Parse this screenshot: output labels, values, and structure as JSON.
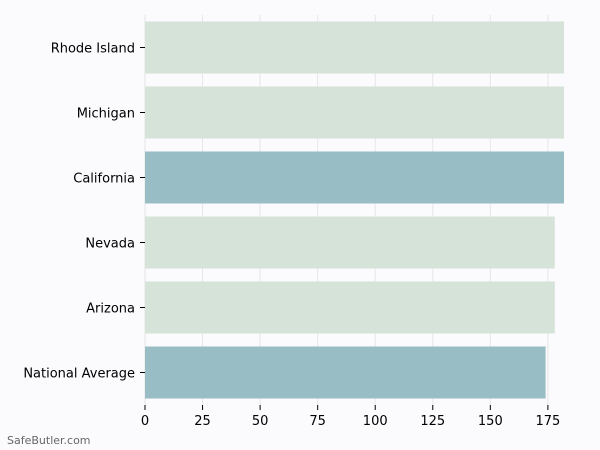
{
  "chart_data": {
    "type": "bar",
    "orientation": "horizontal",
    "categories": [
      "Rhode Island",
      "Michigan",
      "California",
      "Nevada",
      "Arizona",
      "National Average"
    ],
    "values": [
      182,
      182,
      182,
      178,
      178,
      174
    ],
    "highlight": [
      false,
      false,
      true,
      false,
      false,
      true
    ],
    "xlim": [
      0,
      182
    ],
    "xticks": [
      0,
      25,
      50,
      75,
      100,
      125,
      150,
      175
    ],
    "grid": "vertical",
    "title": "",
    "xlabel": "",
    "ylabel": "",
    "colors": {
      "bar": "#d5e3d8",
      "highlight": "#98bdc5",
      "grid": "#e6e6e6",
      "axis": "#000000",
      "background": "#fbfbfe"
    }
  },
  "watermark": "SafeButler.com"
}
